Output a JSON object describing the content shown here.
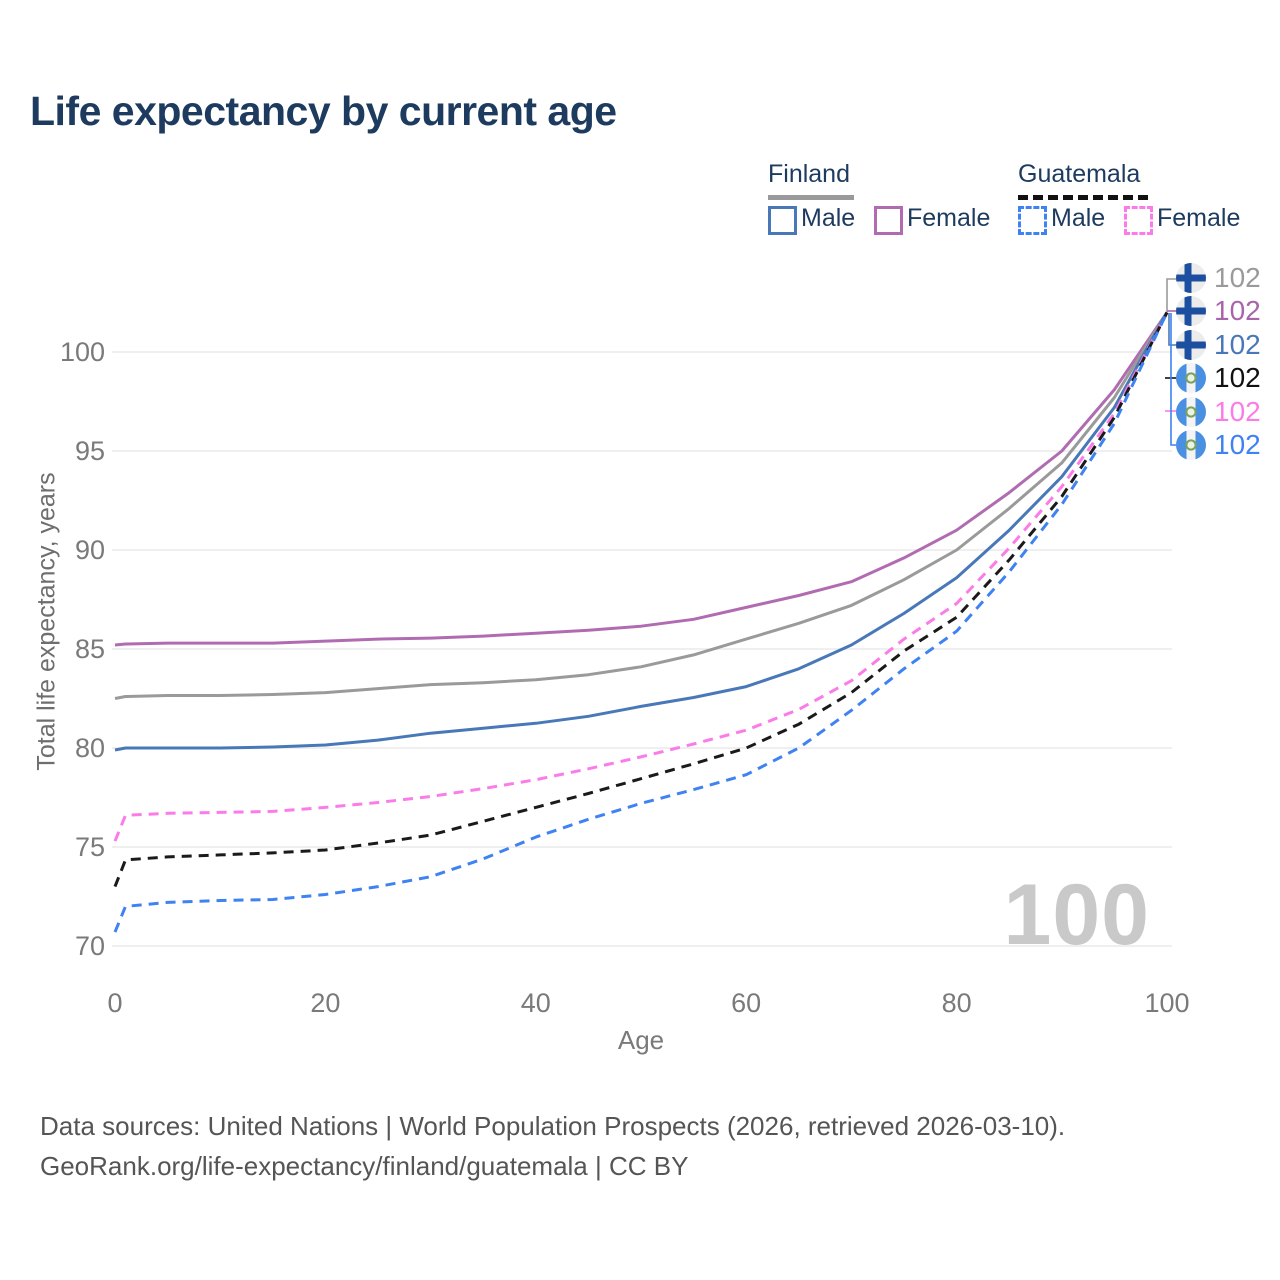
{
  "title": "Life expectancy by current age",
  "watermark": "100",
  "legend": {
    "groups": [
      {
        "name": "Finland",
        "underline_style": "solid",
        "underline_color": "#9a9a9a",
        "items": [
          {
            "label": "Male",
            "color": "#4878b8",
            "dashed": false
          },
          {
            "label": "Female",
            "color": "#b16cb1",
            "dashed": false
          }
        ]
      },
      {
        "name": "Guatemala",
        "underline_style": "dashed",
        "underline_color": "#111111",
        "items": [
          {
            "label": "Male",
            "color": "#3f82f2",
            "dashed": true
          },
          {
            "label": "Female",
            "color": "#fb7ce8",
            "dashed": true
          }
        ]
      }
    ]
  },
  "axes": {
    "x_label": "Age",
    "y_label": "Total life expectancy, years",
    "x_ticks": [
      0,
      20,
      40,
      60,
      80,
      100
    ],
    "y_ticks": [
      70,
      75,
      80,
      85,
      90,
      95,
      100
    ]
  },
  "end_labels": [
    {
      "value": "102",
      "flag": "finland",
      "series": "Finland Both sexes",
      "color": "#9a9a9a"
    },
    {
      "value": "102",
      "flag": "finland",
      "series": "Finland Female",
      "color": "#a965a9"
    },
    {
      "value": "102",
      "flag": "finland",
      "series": "Finland Male",
      "color": "#4878b8"
    },
    {
      "value": "102",
      "flag": "guatemala",
      "series": "Guatemala Both sexes",
      "color": "#111111"
    },
    {
      "value": "102",
      "flag": "guatemala",
      "series": "Guatemala Female",
      "color": "#fb7ce8"
    },
    {
      "value": "102",
      "flag": "guatemala",
      "series": "Guatemala Male",
      "color": "#3f82f2"
    }
  ],
  "footer": {
    "line1": "Data sources: United Nations | World Population Prospects (2026, retrieved 2026-03-10).",
    "line2": "GeoRank.org/life-expectancy/finland/guatemala | CC BY"
  },
  "chart_data": {
    "type": "line",
    "title": "Life expectancy by current age",
    "xlabel": "Age",
    "ylabel": "Total life expectancy, years",
    "xlim": [
      0,
      100
    ],
    "ylim": [
      69,
      103
    ],
    "x_ticks": [
      0,
      20,
      40,
      60,
      80,
      100
    ],
    "y_ticks": [
      70,
      75,
      80,
      85,
      90,
      95,
      100
    ],
    "grid": "horizontal",
    "legend_position": "top-right",
    "series": [
      {
        "name": "Finland Female",
        "key": "finland-female",
        "color": "#b16cb1",
        "dashed": false,
        "end_value": 102,
        "points": [
          [
            0,
            85.2
          ],
          [
            1,
            85.25
          ],
          [
            5,
            85.3
          ],
          [
            10,
            85.3
          ],
          [
            15,
            85.3
          ],
          [
            20,
            85.4
          ],
          [
            25,
            85.5
          ],
          [
            30,
            85.55
          ],
          [
            35,
            85.65
          ],
          [
            40,
            85.8
          ],
          [
            45,
            85.95
          ],
          [
            50,
            86.15
          ],
          [
            55,
            86.5
          ],
          [
            60,
            87.1
          ],
          [
            65,
            87.7
          ],
          [
            70,
            88.4
          ],
          [
            75,
            89.6
          ],
          [
            80,
            91.0
          ],
          [
            85,
            92.9
          ],
          [
            90,
            95.0
          ],
          [
            95,
            98.1
          ],
          [
            100,
            102
          ]
        ]
      },
      {
        "name": "Finland Both sexes",
        "key": "finland-both",
        "color": "#9a9a9a",
        "dashed": false,
        "end_value": 102,
        "points": [
          [
            0,
            82.5
          ],
          [
            1,
            82.6
          ],
          [
            5,
            82.65
          ],
          [
            10,
            82.65
          ],
          [
            15,
            82.7
          ],
          [
            20,
            82.8
          ],
          [
            25,
            83.0
          ],
          [
            30,
            83.2
          ],
          [
            35,
            83.3
          ],
          [
            40,
            83.45
          ],
          [
            45,
            83.7
          ],
          [
            50,
            84.1
          ],
          [
            55,
            84.7
          ],
          [
            60,
            85.5
          ],
          [
            65,
            86.3
          ],
          [
            70,
            87.2
          ],
          [
            75,
            88.5
          ],
          [
            80,
            90.0
          ],
          [
            85,
            92.1
          ],
          [
            90,
            94.4
          ],
          [
            95,
            97.7
          ],
          [
            100,
            102
          ]
        ]
      },
      {
        "name": "Finland Male",
        "key": "finland-male",
        "color": "#4878b8",
        "dashed": false,
        "end_value": 102,
        "points": [
          [
            0,
            79.9
          ],
          [
            1,
            80.0
          ],
          [
            5,
            80.0
          ],
          [
            10,
            80.0
          ],
          [
            15,
            80.05
          ],
          [
            20,
            80.15
          ],
          [
            25,
            80.4
          ],
          [
            30,
            80.75
          ],
          [
            35,
            81.0
          ],
          [
            40,
            81.25
          ],
          [
            45,
            81.6
          ],
          [
            50,
            82.1
          ],
          [
            55,
            82.55
          ],
          [
            60,
            83.1
          ],
          [
            65,
            84.0
          ],
          [
            70,
            85.2
          ],
          [
            75,
            86.8
          ],
          [
            80,
            88.6
          ],
          [
            85,
            91.0
          ],
          [
            90,
            93.7
          ],
          [
            95,
            97.2
          ],
          [
            100,
            102
          ]
        ]
      },
      {
        "name": "Guatemala Female",
        "key": "guatemala-female",
        "color": "#fb7ce8",
        "dashed": true,
        "end_value": 102,
        "points": [
          [
            0,
            75.3
          ],
          [
            1,
            76.6
          ],
          [
            5,
            76.7
          ],
          [
            10,
            76.75
          ],
          [
            15,
            76.8
          ],
          [
            20,
            77.0
          ],
          [
            25,
            77.25
          ],
          [
            30,
            77.55
          ],
          [
            35,
            77.95
          ],
          [
            40,
            78.4
          ],
          [
            45,
            78.95
          ],
          [
            50,
            79.55
          ],
          [
            55,
            80.2
          ],
          [
            60,
            80.9
          ],
          [
            65,
            81.95
          ],
          [
            70,
            83.4
          ],
          [
            75,
            85.5
          ],
          [
            80,
            87.3
          ],
          [
            85,
            90.1
          ],
          [
            90,
            93.2
          ],
          [
            95,
            96.9
          ],
          [
            100,
            102
          ]
        ]
      },
      {
        "name": "Guatemala Both sexes",
        "key": "guatemala-both",
        "color": "#1a1a1a",
        "dashed": true,
        "end_value": 102,
        "points": [
          [
            0,
            73.0
          ],
          [
            1,
            74.35
          ],
          [
            5,
            74.5
          ],
          [
            10,
            74.6
          ],
          [
            15,
            74.7
          ],
          [
            20,
            74.85
          ],
          [
            25,
            75.2
          ],
          [
            30,
            75.6
          ],
          [
            35,
            76.3
          ],
          [
            40,
            77.0
          ],
          [
            45,
            77.7
          ],
          [
            50,
            78.45
          ],
          [
            55,
            79.2
          ],
          [
            60,
            80.0
          ],
          [
            65,
            81.2
          ],
          [
            70,
            82.8
          ],
          [
            75,
            84.9
          ],
          [
            80,
            86.6
          ],
          [
            85,
            89.5
          ],
          [
            90,
            92.7
          ],
          [
            95,
            96.7
          ],
          [
            100,
            102
          ]
        ]
      },
      {
        "name": "Guatemala Male",
        "key": "guatemala-male",
        "color": "#3f82f2",
        "dashed": true,
        "end_value": 102,
        "points": [
          [
            0,
            70.7
          ],
          [
            1,
            72.0
          ],
          [
            5,
            72.2
          ],
          [
            10,
            72.3
          ],
          [
            15,
            72.35
          ],
          [
            20,
            72.6
          ],
          [
            25,
            73.0
          ],
          [
            30,
            73.5
          ],
          [
            35,
            74.4
          ],
          [
            40,
            75.5
          ],
          [
            45,
            76.4
          ],
          [
            50,
            77.2
          ],
          [
            55,
            77.9
          ],
          [
            60,
            78.65
          ],
          [
            65,
            80.0
          ],
          [
            70,
            81.9
          ],
          [
            75,
            84.0
          ],
          [
            80,
            85.9
          ],
          [
            85,
            88.9
          ],
          [
            90,
            92.3
          ],
          [
            95,
            96.4
          ],
          [
            100,
            102
          ]
        ]
      }
    ]
  }
}
